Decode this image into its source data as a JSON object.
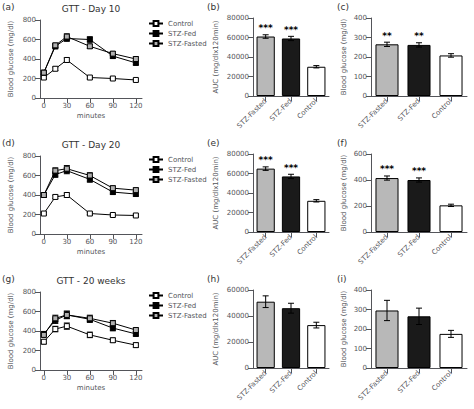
{
  "chart_data": [
    {
      "type": "line",
      "title": "GTT - Day 10",
      "annotations": [
        {
          "text": "(a)"
        }
      ],
      "x_label": "minutes",
      "y_label": "Blood glucose (mg/dl)",
      "x": [
        0,
        15,
        30,
        60,
        90,
        120
      ],
      "xlim": [
        -5,
        128
      ],
      "xticks": [
        0,
        30,
        60,
        90,
        120
      ],
      "ylim": [
        0,
        800
      ],
      "yticks": [
        0,
        200,
        400,
        600,
        800
      ],
      "grid": false,
      "legend": "upper right",
      "marker": "square",
      "series": [
        {
          "name": "Control",
          "color": "#ffffff",
          "values": [
            210,
            300,
            390,
            210,
            200,
            185
          ],
          "errors": [
            12,
            18,
            22,
            15,
            12,
            12
          ]
        },
        {
          "name": "STZ-Fed",
          "color": "#000000",
          "values": [
            260,
            530,
            610,
            600,
            430,
            360
          ],
          "errors": [
            18,
            25,
            28,
            28,
            22,
            22
          ]
        },
        {
          "name": "STZ-Fasted",
          "color": "#b0b0b0",
          "values": [
            260,
            540,
            630,
            530,
            455,
            400
          ],
          "errors": [
            18,
            22,
            28,
            22,
            22,
            22
          ]
        }
      ]
    },
    {
      "type": "bar",
      "annotations": [
        {
          "text": "(b)"
        },
        {
          "text": "***",
          "category": "STZ-Fasted"
        },
        {
          "text": "***",
          "category": "STZ-Fed"
        }
      ],
      "y_label": "AUC (mg/dlx120min)",
      "categories": [
        "STZ-Fasted",
        "STZ-Fed",
        "Control"
      ],
      "values": [
        61000,
        59000,
        30000
      ],
      "errors": [
        1800,
        2200,
        1200
      ],
      "colors": [
        "#b8b8b8",
        "#1a1a1a",
        "#ffffff"
      ],
      "ylim": [
        0,
        80000
      ],
      "yticks": [
        0,
        20000,
        40000,
        60000,
        80000
      ],
      "grid": false
    },
    {
      "type": "bar",
      "annotations": [
        {
          "text": "(c)"
        },
        {
          "text": "**",
          "category": "STZ-Fasted"
        },
        {
          "text": "**",
          "category": "STZ-Fed"
        }
      ],
      "y_label": "Blood glucose (mg/dl)",
      "categories": [
        "STZ-Fasted",
        "STZ-Fed",
        "Control"
      ],
      "values": [
        265,
        262,
        208
      ],
      "errors": [
        11,
        11,
        9
      ],
      "colors": [
        "#b8b8b8",
        "#1a1a1a",
        "#ffffff"
      ],
      "ylim": [
        0,
        400
      ],
      "yticks": [
        0,
        100,
        200,
        300,
        400
      ],
      "grid": false
    },
    {
      "type": "line",
      "title": "GTT - Day 20",
      "annotations": [
        {
          "text": "(d)"
        }
      ],
      "x_label": "minutes",
      "y_label": "Blood glucose (mg/dl)",
      "x": [
        0,
        15,
        30,
        60,
        90,
        120
      ],
      "xlim": [
        -5,
        128
      ],
      "xticks": [
        0,
        30,
        60,
        90,
        120
      ],
      "ylim": [
        0,
        800
      ],
      "yticks": [
        0,
        200,
        400,
        600,
        800
      ],
      "grid": false,
      "legend": "upper right",
      "marker": "square",
      "series": [
        {
          "name": "Control",
          "color": "#ffffff",
          "values": [
            210,
            380,
            400,
            210,
            195,
            190
          ],
          "errors": [
            12,
            18,
            22,
            12,
            12,
            12
          ]
        },
        {
          "name": "STZ-Fed",
          "color": "#000000",
          "values": [
            400,
            610,
            650,
            560,
            430,
            410
          ],
          "errors": [
            22,
            28,
            32,
            28,
            22,
            22
          ]
        },
        {
          "name": "STZ-Fasted",
          "color": "#b0b0b0",
          "values": [
            400,
            650,
            670,
            600,
            470,
            450
          ],
          "errors": [
            22,
            28,
            32,
            28,
            22,
            22
          ]
        }
      ]
    },
    {
      "type": "bar",
      "annotations": [
        {
          "text": "(e)"
        },
        {
          "text": "***",
          "category": "STZ-Fasted"
        },
        {
          "text": "***",
          "category": "STZ-Fed"
        }
      ],
      "y_label": "AUC (mg/dlx120min)",
      "categories": [
        "STZ-Fasted",
        "STZ-Fed",
        "Control"
      ],
      "values": [
        65000,
        57000,
        32000
      ],
      "errors": [
        1800,
        2200,
        1200
      ],
      "colors": [
        "#b8b8b8",
        "#1a1a1a",
        "#ffffff"
      ],
      "ylim": [
        0,
        80000
      ],
      "yticks": [
        0,
        20000,
        40000,
        60000,
        80000
      ],
      "grid": false
    },
    {
      "type": "bar",
      "annotations": [
        {
          "text": "(f)"
        },
        {
          "text": "***",
          "category": "STZ-Fasted"
        },
        {
          "text": "***",
          "category": "STZ-Fed"
        }
      ],
      "y_label": "Blood glucose (mg/dl)",
      "categories": [
        "STZ-Fasted",
        "STZ-Fed",
        "Control"
      ],
      "values": [
        415,
        400,
        205
      ],
      "errors": [
        16,
        16,
        9
      ],
      "colors": [
        "#b8b8b8",
        "#1a1a1a",
        "#ffffff"
      ],
      "ylim": [
        0,
        600
      ],
      "yticks": [
        0,
        200,
        400,
        600
      ],
      "grid": false
    },
    {
      "type": "line",
      "title": "GTT - 20 weeks",
      "annotations": [
        {
          "text": "(g)"
        }
      ],
      "x_label": "minutes",
      "y_label": "Blood glucose (mg/dl)",
      "x": [
        0,
        15,
        30,
        60,
        90,
        120
      ],
      "xlim": [
        -5,
        128
      ],
      "xticks": [
        0,
        30,
        60,
        90,
        120
      ],
      "ylim": [
        0,
        800
      ],
      "yticks": [
        0,
        200,
        400,
        600,
        800
      ],
      "grid": false,
      "legend": "upper right",
      "marker": "square",
      "series": [
        {
          "name": "Control",
          "color": "#ffffff",
          "values": [
            290,
            420,
            450,
            360,
            305,
            255
          ],
          "errors": [
            22,
            28,
            32,
            28,
            22,
            22
          ]
        },
        {
          "name": "STZ-Fed",
          "color": "#000000",
          "values": [
            370,
            510,
            565,
            520,
            430,
            370
          ],
          "errors": [
            22,
            32,
            38,
            32,
            28,
            22
          ]
        },
        {
          "name": "STZ-Fasted",
          "color": "#b0b0b0",
          "values": [
            360,
            530,
            565,
            530,
            480,
            410
          ],
          "errors": [
            22,
            32,
            38,
            32,
            28,
            22
          ]
        }
      ]
    },
    {
      "type": "bar",
      "annotations": [
        {
          "text": "(h)"
        }
      ],
      "y_label": "AUC (mg/dlx120min)",
      "categories": [
        "STZ-Fasted",
        "STZ-Fed",
        "Control"
      ],
      "values": [
        51000,
        46000,
        33000
      ],
      "errors": [
        4500,
        3800,
        2200
      ],
      "colors": [
        "#b8b8b8",
        "#1a1a1a",
        "#ffffff"
      ],
      "ylim": [
        0,
        60000
      ],
      "yticks": [
        0,
        20000,
        40000,
        60000
      ],
      "grid": false
    },
    {
      "type": "bar",
      "annotations": [
        {
          "text": "(i)"
        }
      ],
      "y_label": "Blood glucose (mg/dl)",
      "categories": [
        "STZ-Fasted",
        "STZ-Fed",
        "Control"
      ],
      "values": [
        295,
        265,
        175
      ],
      "errors": [
        52,
        42,
        18
      ],
      "colors": [
        "#b8b8b8",
        "#1a1a1a",
        "#ffffff"
      ],
      "ylim": [
        0,
        400
      ],
      "yticks": [
        0,
        100,
        200,
        300,
        400
      ],
      "grid": false
    }
  ]
}
